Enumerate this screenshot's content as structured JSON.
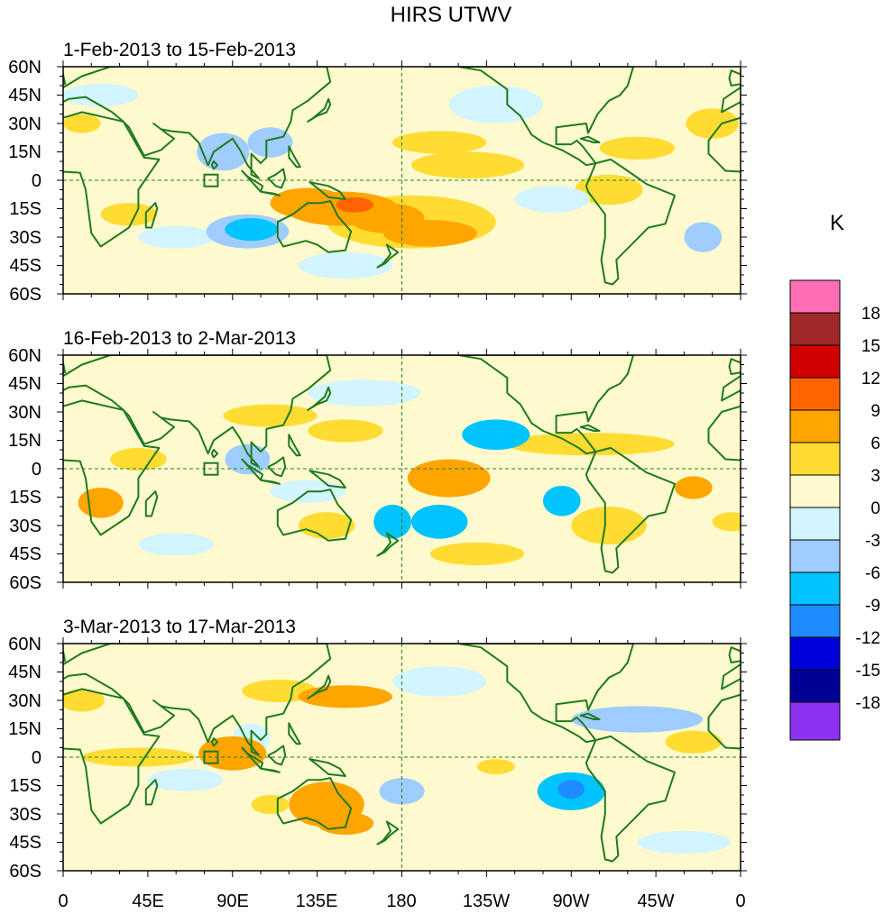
{
  "title": "HIRS UTWV",
  "colorbar": {
    "unit": "K",
    "levels": [
      "18",
      "15",
      "12",
      "9",
      "6",
      "3",
      "0",
      "-3",
      "-6",
      "-9",
      "-12",
      "-15",
      "-18"
    ],
    "colors": [
      "#ff6eb4",
      "#a02828",
      "#d20000",
      "#ff6400",
      "#ffa500",
      "#ffdc32",
      "#fffacd",
      "#d2f5ff",
      "#a0cdff",
      "#00c3ff",
      "#1e8cff",
      "#0000dc",
      "#000096",
      "#8c32f0"
    ]
  },
  "axes": {
    "lat_labels": [
      "60N",
      "45N",
      "30N",
      "15N",
      "0",
      "15S",
      "30S",
      "45S",
      "60S"
    ],
    "lon_labels": [
      "0",
      "45E",
      "90E",
      "135E",
      "180",
      "135W",
      "90W",
      "45W",
      "0"
    ]
  },
  "panels": [
    {
      "title": "1-Feb-2013 to 15-Feb-2013"
    },
    {
      "title": "16-Feb-2013 to 2-Mar-2013"
    },
    {
      "title": "3-Mar-2013 to 17-Mar-2013"
    }
  ],
  "map_data": [
    [
      {
        "lon": 148,
        "lat": -15,
        "rx": 30,
        "ry": 9,
        "level": 3
      },
      {
        "lon": 155,
        "lat": -13,
        "rx": 10,
        "ry": 4,
        "level": 4
      },
      {
        "lon": 172,
        "lat": -20,
        "rx": 20,
        "ry": 8,
        "level": 3
      },
      {
        "lon": 195,
        "lat": -28,
        "rx": 25,
        "ry": 7,
        "level": 2
      },
      {
        "lon": 185,
        "lat": -22,
        "rx": 45,
        "ry": 14,
        "level": 1
      },
      {
        "lon": 130,
        "lat": -12,
        "rx": 20,
        "ry": 8,
        "level": 2
      },
      {
        "lon": 215,
        "lat": 8,
        "rx": 30,
        "ry": 7,
        "level": 1
      },
      {
        "lon": 200,
        "lat": 20,
        "rx": 25,
        "ry": 6,
        "level": 1
      },
      {
        "lon": 290,
        "lat": -5,
        "rx": 18,
        "ry": 8,
        "level": 1
      },
      {
        "lon": 35,
        "lat": -18,
        "rx": 15,
        "ry": 6,
        "level": 1
      },
      {
        "lon": 10,
        "lat": 30,
        "rx": 10,
        "ry": 5,
        "level": 1
      },
      {
        "lon": 305,
        "lat": 17,
        "rx": 20,
        "ry": 6,
        "level": 1
      },
      {
        "lon": 345,
        "lat": 30,
        "rx": 14,
        "ry": 8,
        "level": 1
      },
      {
        "lon": 98,
        "lat": -27,
        "rx": 22,
        "ry": 9,
        "level": -2
      },
      {
        "lon": 100,
        "lat": -26,
        "rx": 14,
        "ry": 6,
        "level": -3
      },
      {
        "lon": 85,
        "lat": 15,
        "rx": 14,
        "ry": 10,
        "level": -2
      },
      {
        "lon": 110,
        "lat": 20,
        "rx": 12,
        "ry": 8,
        "level": -2
      },
      {
        "lon": 230,
        "lat": 40,
        "rx": 25,
        "ry": 10,
        "level": -1
      },
      {
        "lon": 340,
        "lat": -30,
        "rx": 10,
        "ry": 8,
        "level": -2
      },
      {
        "lon": 20,
        "lat": 45,
        "rx": 20,
        "ry": 6,
        "level": -1
      },
      {
        "lon": 150,
        "lat": -45,
        "rx": 25,
        "ry": 7,
        "level": -1
      },
      {
        "lon": 260,
        "lat": -10,
        "rx": 20,
        "ry": 7,
        "level": -1
      },
      {
        "lon": 60,
        "lat": -30,
        "rx": 20,
        "ry": 6,
        "level": -1
      }
    ],
    [
      {
        "lon": 205,
        "lat": -5,
        "rx": 22,
        "ry": 10,
        "level": 2
      },
      {
        "lon": 205,
        "lat": -3,
        "rx": 10,
        "ry": 5,
        "level": 3
      },
      {
        "lon": 20,
        "lat": -18,
        "rx": 12,
        "ry": 8,
        "level": 2
      },
      {
        "lon": 110,
        "lat": 28,
        "rx": 25,
        "ry": 6,
        "level": 1
      },
      {
        "lon": 280,
        "lat": 13,
        "rx": 45,
        "ry": 6,
        "level": 1
      },
      {
        "lon": 150,
        "lat": 20,
        "rx": 20,
        "ry": 6,
        "level": 1
      },
      {
        "lon": 335,
        "lat": -10,
        "rx": 10,
        "ry": 6,
        "level": 2
      },
      {
        "lon": 355,
        "lat": -28,
        "rx": 10,
        "ry": 5,
        "level": 1
      },
      {
        "lon": 290,
        "lat": -30,
        "rx": 20,
        "ry": 10,
        "level": 1
      },
      {
        "lon": 140,
        "lat": -30,
        "rx": 15,
        "ry": 7,
        "level": 1
      },
      {
        "lon": 220,
        "lat": -45,
        "rx": 25,
        "ry": 6,
        "level": 1
      },
      {
        "lon": 40,
        "lat": 5,
        "rx": 15,
        "ry": 6,
        "level": 1
      },
      {
        "lon": 230,
        "lat": 18,
        "rx": 18,
        "ry": 8,
        "level": -3
      },
      {
        "lon": 200,
        "lat": -28,
        "rx": 15,
        "ry": 9,
        "level": -3
      },
      {
        "lon": 175,
        "lat": -28,
        "rx": 10,
        "ry": 9,
        "level": -3
      },
      {
        "lon": 98,
        "lat": 5,
        "rx": 12,
        "ry": 8,
        "level": -2
      },
      {
        "lon": 265,
        "lat": -17,
        "rx": 10,
        "ry": 8,
        "level": -3
      },
      {
        "lon": 130,
        "lat": -12,
        "rx": 20,
        "ry": 6,
        "level": -1
      },
      {
        "lon": 160,
        "lat": 40,
        "rx": 30,
        "ry": 7,
        "level": -1
      },
      {
        "lon": 60,
        "lat": -40,
        "rx": 20,
        "ry": 6,
        "level": -1
      }
    ],
    [
      {
        "lon": 140,
        "lat": -25,
        "rx": 20,
        "ry": 12,
        "level": 2
      },
      {
        "lon": 143,
        "lat": -18,
        "rx": 6,
        "ry": 5,
        "level": 3
      },
      {
        "lon": 150,
        "lat": -35,
        "rx": 15,
        "ry": 6,
        "level": 2
      },
      {
        "lon": 90,
        "lat": 2,
        "rx": 18,
        "ry": 9,
        "level": 2
      },
      {
        "lon": 92,
        "lat": 0,
        "rx": 8,
        "ry": 5,
        "level": 3
      },
      {
        "lon": 150,
        "lat": 32,
        "rx": 25,
        "ry": 6,
        "level": 2
      },
      {
        "lon": 115,
        "lat": 35,
        "rx": 20,
        "ry": 6,
        "level": 1
      },
      {
        "lon": 40,
        "lat": 0,
        "rx": 30,
        "ry": 5,
        "level": 1
      },
      {
        "lon": 335,
        "lat": 8,
        "rx": 15,
        "ry": 6,
        "level": 1
      },
      {
        "lon": 110,
        "lat": -25,
        "rx": 10,
        "ry": 5,
        "level": 1
      },
      {
        "lon": 230,
        "lat": -5,
        "rx": 10,
        "ry": 4,
        "level": 1
      },
      {
        "lon": 10,
        "lat": 30,
        "rx": 12,
        "ry": 6,
        "level": 1
      },
      {
        "lon": 270,
        "lat": -18,
        "rx": 18,
        "ry": 10,
        "level": -3
      },
      {
        "lon": 270,
        "lat": -17,
        "rx": 7,
        "ry": 5,
        "level": -4
      },
      {
        "lon": 305,
        "lat": 20,
        "rx": 35,
        "ry": 7,
        "level": -2
      },
      {
        "lon": 180,
        "lat": -18,
        "rx": 12,
        "ry": 7,
        "level": -2
      },
      {
        "lon": 65,
        "lat": -12,
        "rx": 20,
        "ry": 6,
        "level": -1
      },
      {
        "lon": 330,
        "lat": -45,
        "rx": 25,
        "ry": 6,
        "level": -1
      },
      {
        "lon": 100,
        "lat": 10,
        "rx": 10,
        "ry": 8,
        "level": -1
      },
      {
        "lon": 200,
        "lat": 40,
        "rx": 25,
        "ry": 8,
        "level": -1
      }
    ]
  ]
}
